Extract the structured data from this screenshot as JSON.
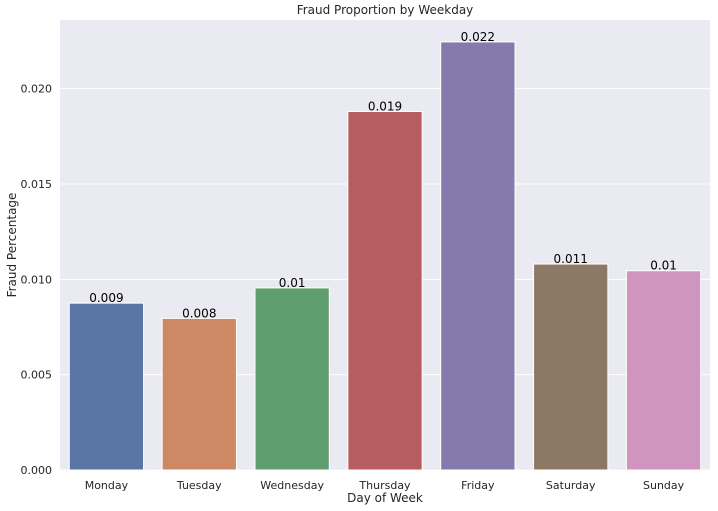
{
  "chart_data": {
    "type": "bar",
    "title": "Fraud Proportion by Weekday",
    "xlabel": "Day of Week",
    "ylabel": "Fraud Percentage",
    "categories": [
      "Monday",
      "Tuesday",
      "Wednesday",
      "Thursday",
      "Friday",
      "Saturday",
      "Sunday"
    ],
    "values": [
      0.00875,
      0.00795,
      0.00955,
      0.0188,
      0.02245,
      0.0108,
      0.01045
    ],
    "data_labels": [
      "0.009",
      "0.008",
      "0.01",
      "0.019",
      "0.022",
      "0.011",
      "0.01"
    ],
    "ylim": [
      0,
      0.0236
    ],
    "yticks": [
      0.0,
      0.005,
      0.01,
      0.015,
      0.02
    ],
    "ytick_labels": [
      "0.000",
      "0.005",
      "0.010",
      "0.015",
      "0.020"
    ],
    "grid": true,
    "colors": [
      "#5875a4",
      "#cc8963",
      "#5f9e6e",
      "#b55d60",
      "#857aab",
      "#8d7866",
      "#d095bf"
    ],
    "background_color": "#eaeaf2",
    "grid_color": "#ffffff"
  }
}
